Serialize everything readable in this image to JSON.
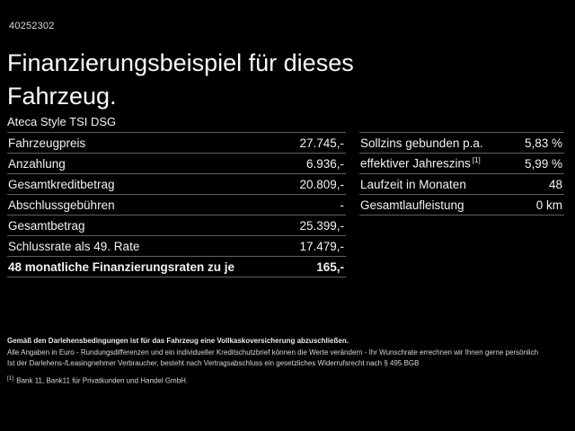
{
  "page": {
    "vehicle_id": "40252302",
    "title": "Finanzierungsbeispiel für dieses Fahrzeug.",
    "vehicle_name": "Ateca Style TSI DSG"
  },
  "financing_table": {
    "rows": [
      {
        "label": "Fahrzeugpreis",
        "value": "27.745,-",
        "bold": false
      },
      {
        "label": "Anzahlung",
        "value": "6.936,-",
        "bold": false
      },
      {
        "label": "Gesamtkreditbetrag",
        "value": "20.809,-",
        "bold": false
      },
      {
        "label": "Abschlussgebühren",
        "value": "-",
        "bold": false
      },
      {
        "label": "Gesamtbetrag",
        "value": "25.399,-",
        "bold": false
      },
      {
        "label": "Schlussrate als 49. Rate",
        "value": "17.479,-",
        "bold": false
      },
      {
        "label": "48 monatliche Finanzierungsraten zu je",
        "value": "165,-",
        "bold": true
      }
    ]
  },
  "terms_table": {
    "rows": [
      {
        "label": "Sollzins gebunden p.a.",
        "value": "5,83 %",
        "bold": false
      },
      {
        "label": "effektiver Jahreszins",
        "sup": "[1]",
        "value": "5,99 %",
        "bold": false
      },
      {
        "label": "Laufzeit in Monaten",
        "value": "48",
        "bold": false
      },
      {
        "label": "Gesamtlaufleistung",
        "value": "0 km",
        "bold": false
      }
    ]
  },
  "disclaimer": {
    "line1": "Gemäß den Darlehensbedingungen ist für das Fahrzeug eine Vollkaskoversicherung abzuschließen.",
    "line2": "Alle Angaben in Euro - Rundungsdifferenzen und ein individueller Kreditschutzbrief können die Werte verändern - Ihr Wunschrate errechnen wir Ihnen gerne persönlich",
    "line3": "Ist der Darlehens-/Leasingnehmer Verbraucher, besteht nach Vertragsabschluss ein gesetzliches Widerrufsrecht nach § 495 BGB",
    "footnote_marker": "[1]",
    "footnote": "Bank 11, Bank11 für Privatkunden und Handel GmbH."
  },
  "colors": {
    "background": "#000000",
    "text": "#f2f2f2",
    "divider": "#5f5f5f"
  }
}
